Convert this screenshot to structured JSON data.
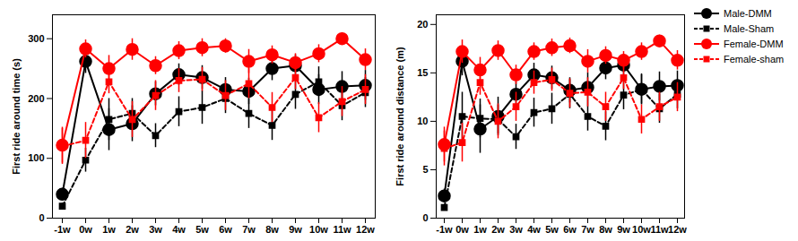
{
  "chart_data": [
    {
      "type": "line",
      "ylabel": "First ride around time (s)",
      "categories": [
        "-1w",
        "0w",
        "1w",
        "2w",
        "3w",
        "4w",
        "5w",
        "6w",
        "7w",
        "8w",
        "9w",
        "10w",
        "11w",
        "12w"
      ],
      "ylim": [
        0,
        340
      ],
      "yticks": [
        0,
        100,
        200,
        300
      ],
      "series": [
        {
          "name": "Male-DMM",
          "color": "#000000",
          "marker": "circle",
          "line_style": "solid",
          "values": [
            40,
            262,
            148,
            158,
            208,
            240,
            235,
            215,
            212,
            250,
            255,
            215,
            220,
            222
          ],
          "errors": [
            10,
            20,
            35,
            30,
            20,
            18,
            20,
            20,
            22,
            20,
            18,
            25,
            25,
            25
          ]
        },
        {
          "name": "Male-Sham",
          "color": "#000000",
          "marker": "square",
          "line_style": "dashed",
          "values": [
            20,
            97,
            165,
            175,
            138,
            178,
            185,
            200,
            175,
            155,
            207,
            228,
            188,
            210
          ],
          "errors": [
            5,
            20,
            35,
            25,
            20,
            25,
            28,
            25,
            25,
            25,
            25,
            25,
            25,
            25
          ]
        },
        {
          "name": "Female-DMM",
          "color": "#ff0000",
          "marker": "circle",
          "line_style": "solid",
          "values": [
            122,
            283,
            250,
            282,
            255,
            280,
            285,
            288,
            262,
            273,
            260,
            275,
            300,
            265
          ],
          "errors": [
            30,
            15,
            22,
            18,
            15,
            15,
            15,
            12,
            20,
            15,
            15,
            15,
            10,
            18
          ]
        },
        {
          "name": "Female-sham",
          "color": "#ff0000",
          "marker": "square",
          "line_style": "dashed",
          "values": [
            120,
            130,
            228,
            165,
            205,
            230,
            232,
            205,
            225,
            185,
            235,
            168,
            195,
            215
          ],
          "errors": [
            30,
            30,
            20,
            30,
            25,
            20,
            20,
            25,
            25,
            25,
            20,
            25,
            25,
            25
          ]
        }
      ]
    },
    {
      "type": "line",
      "ylabel": "First ride around distance (m)",
      "categories": [
        "-1w",
        "0w",
        "1w",
        "2w",
        "3w",
        "4w",
        "5w",
        "6w",
        "7w",
        "8w",
        "9w",
        "10w",
        "11w",
        "12w"
      ],
      "ylim": [
        0,
        21
      ],
      "yticks": [
        0,
        5,
        10,
        15,
        20
      ],
      "legend": "right",
      "series": [
        {
          "name": "Male-DMM",
          "color": "#000000",
          "marker": "circle",
          "line_style": "solid",
          "values": [
            2.3,
            16.2,
            9.2,
            10.5,
            12.8,
            14.8,
            14.5,
            13.2,
            13.5,
            15.5,
            15.8,
            13.3,
            13.6,
            13.7
          ],
          "errors": [
            0.7,
            1.5,
            2.5,
            2.0,
            1.3,
            1.2,
            1.2,
            1.3,
            1.5,
            1.2,
            1.1,
            1.6,
            1.5,
            1.5
          ]
        },
        {
          "name": "Male-Sham",
          "color": "#000000",
          "marker": "square",
          "line_style": "dashed",
          "values": [
            1.1,
            10.5,
            10.3,
            10.2,
            8.4,
            10.9,
            11.3,
            12.8,
            10.5,
            9.5,
            12.7,
            13.3,
            11.3,
            12.8
          ],
          "errors": [
            0.3,
            2.5,
            2.0,
            1.5,
            1.3,
            1.5,
            1.6,
            1.5,
            1.5,
            1.5,
            1.5,
            1.5,
            1.5,
            1.5
          ]
        },
        {
          "name": "Female-DMM",
          "color": "#ff0000",
          "marker": "circle",
          "line_style": "solid",
          "values": [
            7.6,
            17.2,
            15.3,
            17.3,
            14.8,
            17.2,
            17.6,
            17.8,
            16.2,
            16.8,
            16.3,
            17.2,
            18.3,
            16.3
          ],
          "errors": [
            1.8,
            1.2,
            1.3,
            1.0,
            1.0,
            0.9,
            0.9,
            0.8,
            1.2,
            0.9,
            0.9,
            0.9,
            0.6,
            1.0
          ]
        },
        {
          "name": "Female-sham",
          "color": "#ff0000",
          "marker": "square",
          "line_style": "dashed",
          "values": [
            7.2,
            7.8,
            14.0,
            10.0,
            11.5,
            14.0,
            14.3,
            12.9,
            13.0,
            11.5,
            14.5,
            10.2,
            11.5,
            12.5
          ],
          "errors": [
            1.8,
            2.0,
            1.3,
            1.8,
            1.5,
            1.2,
            1.2,
            1.5,
            1.5,
            1.5,
            1.2,
            1.5,
            1.5,
            1.5
          ]
        }
      ]
    }
  ]
}
